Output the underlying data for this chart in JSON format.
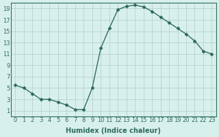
{
  "x": [
    0,
    1,
    2,
    3,
    4,
    5,
    6,
    7,
    8,
    9,
    10,
    11,
    12,
    13,
    14,
    15,
    16,
    17,
    18,
    19,
    20,
    21,
    22,
    23
  ],
  "y": [
    5.5,
    5.0,
    4.0,
    3.0,
    3.0,
    2.5,
    2.0,
    1.2,
    1.2,
    5.0,
    12.0,
    15.5,
    18.8,
    19.4,
    19.6,
    19.3,
    18.5,
    17.5,
    16.5,
    15.5,
    14.5,
    13.3,
    11.5,
    11.0
  ],
  "line_color": "#2e6b5e",
  "marker": "D",
  "marker_size": 2.5,
  "bg_color": "#d8f0ec",
  "grid_color": "#b0ccc8",
  "xlabel": "Humidex (Indice chaleur)",
  "xlim": [
    -0.5,
    23.5
  ],
  "ylim": [
    0,
    20
  ],
  "yticks": [
    1,
    3,
    5,
    7,
    9,
    11,
    13,
    15,
    17,
    19
  ],
  "xticks": [
    0,
    1,
    2,
    3,
    4,
    5,
    6,
    7,
    8,
    9,
    10,
    11,
    12,
    13,
    14,
    15,
    16,
    17,
    18,
    19,
    20,
    21,
    22,
    23
  ],
  "tick_fontsize": 6,
  "xlabel_fontsize": 7
}
